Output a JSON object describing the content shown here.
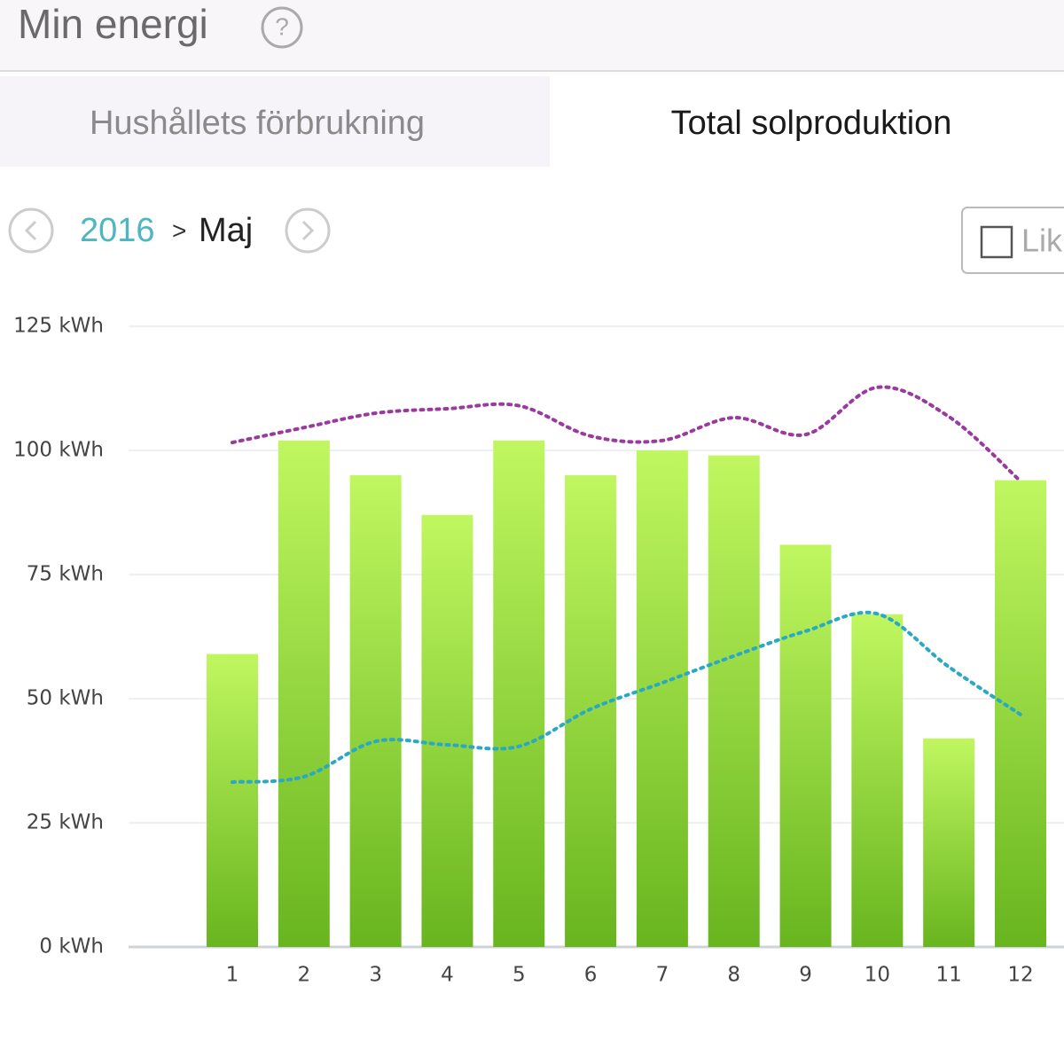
{
  "header": {
    "title": "Min energi",
    "help": "?"
  },
  "tabs": [
    "Hushållets förbrukning",
    "Total solproduktion"
  ],
  "nav": {
    "year": "2016",
    "separator": ">",
    "month": "Maj"
  },
  "checkbox": {
    "label": "Lik"
  },
  "chart_data": {
    "type": "bar",
    "categories": [
      "1",
      "2",
      "3",
      "4",
      "5",
      "6",
      "7",
      "8",
      "9",
      "10",
      "11",
      "12"
    ],
    "series": [
      {
        "type": "bar",
        "color": [
          "#c0f760",
          "#68b51f"
        ],
        "values": [
          59,
          102,
          95,
          87,
          102,
          95,
          100,
          99,
          81,
          67,
          42,
          94
        ]
      },
      {
        "type": "line",
        "color": "#9b3a9e",
        "values": [
          101.6,
          104.6,
          107.5,
          108.4,
          109,
          102.9,
          102,
          106.6,
          103.2,
          112.7,
          106.8,
          93.8
        ]
      },
      {
        "type": "line",
        "color": "#2aa8c4",
        "values": [
          33.2,
          34.3,
          41.4,
          40.7,
          40.4,
          47.9,
          53.2,
          58.6,
          63.6,
          67.1,
          56.4,
          46.8
        ]
      }
    ],
    "ylim": [
      0,
      125
    ],
    "yticks": [
      {
        "value": 0,
        "label": "0 kWh"
      },
      {
        "value": 25,
        "label": "25 kWh"
      },
      {
        "value": 50,
        "label": "50 kWh"
      },
      {
        "value": 75,
        "label": "75 kWh"
      },
      {
        "value": 100,
        "label": "100 kWh"
      },
      {
        "value": 125,
        "label": "125 kWh"
      }
    ],
    "grid": true
  }
}
